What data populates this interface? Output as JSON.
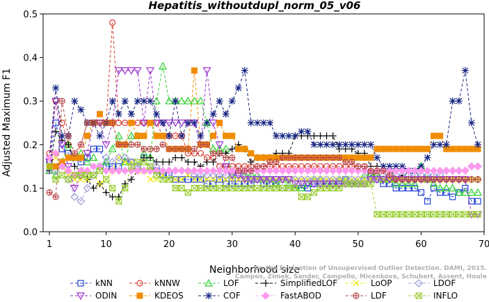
{
  "chart_data": {
    "type": "line",
    "title": "Hepatitis_withoutdupl_norm_05_v06",
    "xlabel": "Neighborhood size",
    "ylabel": "Adjusted Maximum F1",
    "xlim": [
      0,
      70
    ],
    "ylim": [
      0,
      0.5
    ],
    "xticks": [
      1,
      10,
      20,
      30,
      40,
      50,
      60,
      70
    ],
    "yticks": [
      0.0,
      0.1,
      0.2,
      0.3,
      0.4,
      0.5
    ],
    "ytick_labels": [
      "0.0",
      "0.1",
      "0.2",
      "0.3",
      "0.4",
      "0.5"
    ],
    "grid": false,
    "legend_position": "bottom",
    "watermark": [
      "Campos, Zimek, Sander, Campello, Micenkova, Schubert, Assent, Houle",
      "On the Evaluation of Unsupervised Outlier Detection. DAMI, 2015."
    ],
    "series": [
      {
        "name": "kNN",
        "color": "#1f3fd6",
        "marker": "square",
        "values": [
          0.16,
          0.25,
          0.19,
          0.18,
          0.17,
          0.16,
          0.17,
          0.19,
          0.19,
          0.15,
          0.15,
          0.15,
          0.16,
          0.16,
          0.15,
          0.17,
          0.15,
          0.14,
          0.13,
          0.13,
          0.12,
          0.12,
          0.12,
          0.12,
          0.12,
          0.11,
          0.11,
          0.12,
          0.11,
          0.11,
          0.11,
          0.11,
          0.11,
          0.12,
          0.11,
          0.11,
          0.11,
          0.1,
          0.1,
          0.1,
          0.1,
          0.1,
          0.11,
          0.11,
          0.11,
          0.11,
          0.11,
          0.12,
          0.11,
          0.11,
          0.11,
          0.13,
          0.12,
          0.11,
          0.11,
          0.1,
          0.1,
          0.1,
          0.1,
          0.09,
          0.07,
          0.1,
          0.09,
          0.09,
          0.08,
          0.09,
          0.1,
          0.07,
          0.07
        ]
      },
      {
        "name": "kNNW",
        "color": "#d63a2f",
        "marker": "circle",
        "values": [
          0.18,
          0.3,
          0.25,
          0.2,
          0.17,
          0.2,
          0.25,
          0.25,
          0.25,
          0.25,
          0.48,
          0.25,
          0.25,
          0.25,
          0.25,
          0.25,
          0.25,
          0.25,
          0.22,
          0.22,
          0.22,
          0.22,
          0.18,
          0.18,
          0.18,
          0.17,
          0.17,
          0.15,
          0.15,
          0.15,
          0.15,
          0.15,
          0.15,
          0.15,
          0.15,
          0.15,
          0.15,
          0.15,
          0.15,
          0.15,
          0.15,
          0.15,
          0.15,
          0.15,
          0.15,
          0.15,
          0.15,
          0.15,
          0.15,
          0.15,
          0.15,
          0.13,
          0.13,
          0.12,
          0.12,
          0.12,
          0.12,
          0.12,
          0.12,
          0.12,
          0.12,
          0.12,
          0.12,
          0.12,
          0.12,
          0.12,
          0.12,
          0.12,
          0.12
        ]
      },
      {
        "name": "LOF",
        "color": "#2fcf2f",
        "marker": "triangle-up",
        "values": [
          0.14,
          0.13,
          0.16,
          0.2,
          0.17,
          0.18,
          0.16,
          0.17,
          0.15,
          0.16,
          0.19,
          0.22,
          0.16,
          0.22,
          0.22,
          0.18,
          0.17,
          0.3,
          0.38,
          0.3,
          0.3,
          0.3,
          0.3,
          0.3,
          0.3,
          0.25,
          0.19,
          0.19,
          0.19,
          0.13,
          0.14,
          0.13,
          0.13,
          0.13,
          0.12,
          0.12,
          0.11,
          0.12,
          0.11,
          0.1,
          0.1,
          0.11,
          0.12,
          0.12,
          0.11,
          0.11,
          0.12,
          0.12,
          0.11,
          0.11,
          0.13,
          0.13,
          0.13,
          0.12,
          0.12,
          0.11,
          0.11,
          0.11,
          0.11,
          0.15,
          0.12,
          0.11,
          0.1,
          0.1,
          0.1,
          0.09,
          0.09,
          0.09,
          0.09
        ]
      },
      {
        "name": "SimplifiedLOF",
        "color": "#000000",
        "marker": "plus",
        "values": [
          0.14,
          0.23,
          0.21,
          0.2,
          0.15,
          0.14,
          0.12,
          0.1,
          0.11,
          0.09,
          0.08,
          0.08,
          0.11,
          0.12,
          0.14,
          0.17,
          0.17,
          0.16,
          0.16,
          0.16,
          0.17,
          0.17,
          0.16,
          0.16,
          0.15,
          0.16,
          0.16,
          0.18,
          0.18,
          0.19,
          0.2,
          0.19,
          0.16,
          0.17,
          0.17,
          0.17,
          0.18,
          0.18,
          0.18,
          0.22,
          0.22,
          0.22,
          0.22,
          0.22,
          0.22,
          0.22,
          0.19,
          0.19,
          0.19,
          0.18,
          0.18,
          0.15,
          0.15,
          0.15,
          0.15,
          0.12,
          0.13,
          0.12,
          0.12,
          0.12,
          0.12,
          0.12,
          0.12,
          0.12,
          0.12,
          0.12,
          0.12,
          0.12,
          0.12
        ]
      },
      {
        "name": "LoOP",
        "color": "#e8e800",
        "marker": "x",
        "values": [
          0.15,
          0.17,
          0.15,
          0.13,
          0.12,
          0.12,
          0.12,
          0.13,
          0.11,
          0.12,
          0.14,
          0.17,
          0.16,
          0.16,
          0.14,
          0.14,
          0.12,
          0.12,
          0.13,
          0.12,
          0.12,
          0.12,
          0.13,
          0.12,
          0.12,
          0.12,
          0.12,
          0.12,
          0.12,
          0.12,
          0.12,
          0.12,
          0.12,
          0.12,
          0.12,
          0.12,
          0.12,
          0.12,
          0.12,
          0.12,
          0.12,
          0.12,
          0.12,
          0.12,
          0.12,
          0.12,
          0.12,
          0.12,
          0.12,
          0.12,
          0.12,
          0.12,
          0.12,
          0.12,
          0.12,
          0.12,
          0.12,
          0.12,
          0.12,
          0.12,
          0.12,
          0.12,
          0.12,
          0.12,
          0.12,
          0.12,
          0.12,
          0.12,
          0.12
        ]
      },
      {
        "name": "LDOF",
        "color": "#9a9ad8",
        "marker": "diamond",
        "values": [
          0.14,
          0.14,
          0.15,
          0.12,
          0.08,
          0.07,
          0.1,
          0.13,
          0.15,
          0.17,
          0.16,
          0.17,
          0.17,
          0.16,
          0.15,
          0.14,
          0.14,
          0.15,
          0.14,
          0.14,
          0.14,
          0.14,
          0.14,
          0.13,
          0.13,
          0.13,
          0.13,
          0.13,
          0.13,
          0.12,
          0.13,
          0.13,
          0.12,
          0.12,
          0.12,
          0.12,
          0.12,
          0.12,
          0.12,
          0.12,
          0.12,
          0.12,
          0.12,
          0.12,
          0.12,
          0.12,
          0.12,
          0.12,
          0.12,
          0.12,
          0.12,
          0.12,
          0.12,
          0.13,
          0.13,
          0.13,
          0.13,
          0.13,
          0.13,
          0.13,
          0.13,
          0.13,
          0.13,
          0.14,
          0.14,
          0.14,
          0.14,
          0.15,
          0.15
        ]
      },
      {
        "name": "ODIN",
        "color": "#9a2fcf",
        "marker": "triangle-down",
        "values": [
          0.16,
          0.3,
          0.2,
          0.15,
          0.1,
          0.13,
          0.18,
          0.25,
          0.25,
          0.2,
          0.25,
          0.37,
          0.37,
          0.37,
          0.37,
          0.25,
          0.37,
          0.25,
          0.25,
          0.25,
          0.25,
          0.25,
          0.25,
          0.25,
          0.2,
          0.37,
          0.25,
          0.2,
          0.15,
          0.13,
          0.13,
          0.12,
          0.12,
          0.12,
          0.12,
          0.12,
          0.12,
          0.12,
          0.12,
          0.11,
          0.11,
          0.11,
          0.11,
          0.11,
          0.11,
          0.11,
          0.11,
          0.11,
          0.11,
          0.11,
          0.11,
          0.12,
          0.12,
          0.12,
          0.12,
          0.12,
          0.12,
          0.12,
          0.12,
          0.12,
          0.12,
          0.12,
          0.12,
          0.12,
          0.12,
          0.12,
          0.12,
          0.04,
          0.04
        ]
      },
      {
        "name": "KDEOS",
        "color": "#f08c00",
        "marker": "square-filled",
        "values": [
          0.15,
          0.15,
          0.16,
          0.17,
          0.17,
          0.17,
          0.22,
          0.25,
          0.27,
          0.25,
          0.25,
          0.2,
          0.2,
          0.25,
          0.22,
          0.22,
          0.25,
          0.22,
          0.22,
          0.19,
          0.19,
          0.19,
          0.19,
          0.37,
          0.2,
          0.2,
          0.22,
          0.25,
          0.22,
          0.22,
          0.19,
          0.19,
          0.18,
          0.17,
          0.17,
          0.17,
          0.17,
          0.17,
          0.17,
          0.17,
          0.17,
          0.17,
          0.17,
          0.17,
          0.17,
          0.17,
          0.17,
          0.17,
          0.17,
          0.17,
          0.17,
          0.17,
          0.19,
          0.19,
          0.19,
          0.19,
          0.19,
          0.19,
          0.19,
          0.19,
          0.19,
          0.22,
          0.22,
          0.19,
          0.19,
          0.19,
          0.19,
          0.19,
          0.19
        ]
      },
      {
        "name": "COF",
        "color": "#10207f",
        "marker": "asterisk",
        "values": [
          0.17,
          0.33,
          0.22,
          0.22,
          0.3,
          0.28,
          0.25,
          0.25,
          0.22,
          0.25,
          0.3,
          0.27,
          0.3,
          0.27,
          0.3,
          0.3,
          0.3,
          0.27,
          0.25,
          0.22,
          0.3,
          0.22,
          0.25,
          0.25,
          0.22,
          0.25,
          0.27,
          0.3,
          0.27,
          0.3,
          0.33,
          0.37,
          0.25,
          0.25,
          0.25,
          0.25,
          0.22,
          0.22,
          0.22,
          0.22,
          0.23,
          0.23,
          0.2,
          0.2,
          0.2,
          0.2,
          0.2,
          0.2,
          0.2,
          0.2,
          0.2,
          0.2,
          0.17,
          0.15,
          0.15,
          0.15,
          0.15,
          0.14,
          0.14,
          0.15,
          0.17,
          0.2,
          0.2,
          0.2,
          0.3,
          0.3,
          0.37,
          0.25,
          0.2
        ]
      },
      {
        "name": "FastABOD",
        "color": "#ff99ee",
        "marker": "diamond-filled",
        "values": [
          0.17,
          0.18,
          0.15,
          0.14,
          0.13,
          0.14,
          0.14,
          0.15,
          0.15,
          0.14,
          0.14,
          0.14,
          0.14,
          0.14,
          0.14,
          0.14,
          0.14,
          0.14,
          0.14,
          0.14,
          0.14,
          0.14,
          0.14,
          0.14,
          0.14,
          0.14,
          0.14,
          0.14,
          0.14,
          0.14,
          0.14,
          0.14,
          0.14,
          0.14,
          0.14,
          0.14,
          0.14,
          0.14,
          0.14,
          0.14,
          0.14,
          0.14,
          0.14,
          0.14,
          0.14,
          0.14,
          0.14,
          0.14,
          0.14,
          0.14,
          0.14,
          0.14,
          0.14,
          0.14,
          0.14,
          0.14,
          0.14,
          0.14,
          0.14,
          0.14,
          0.14,
          0.14,
          0.14,
          0.14,
          0.14,
          0.14,
          0.14,
          0.15,
          0.15
        ]
      },
      {
        "name": "LDF",
        "color": "#b84a4a",
        "marker": "circle-plus",
        "values": [
          0.09,
          0.08,
          0.3,
          0.22,
          0.18,
          0.2,
          0.25,
          0.25,
          0.25,
          0.25,
          0.25,
          0.2,
          0.2,
          0.2,
          0.2,
          0.19,
          0.19,
          0.19,
          0.2,
          0.19,
          0.19,
          0.19,
          0.19,
          0.19,
          0.2,
          0.2,
          0.18,
          0.18,
          0.17,
          0.17,
          0.14,
          0.14,
          0.14,
          0.15,
          0.15,
          0.16,
          0.16,
          0.17,
          0.17,
          0.17,
          0.17,
          0.17,
          0.17,
          0.17,
          0.17,
          0.17,
          0.17,
          0.16,
          0.16,
          0.15,
          0.15,
          0.14,
          0.14,
          0.14,
          0.13,
          0.12,
          0.12,
          0.12,
          0.12,
          0.12,
          0.12,
          0.12,
          0.12,
          0.12,
          0.12,
          0.12,
          0.12,
          0.12,
          0.12
        ]
      },
      {
        "name": "INFLO",
        "color": "#9acd32",
        "marker": "x-square",
        "values": [
          0.15,
          0.12,
          0.13,
          0.12,
          0.13,
          0.13,
          0.13,
          0.13,
          0.14,
          0.12,
          0.1,
          0.07,
          0.1,
          0.15,
          0.16,
          0.16,
          0.15,
          0.13,
          0.12,
          0.12,
          0.1,
          0.1,
          0.09,
          0.1,
          0.1,
          0.1,
          0.1,
          0.1,
          0.1,
          0.1,
          0.1,
          0.1,
          0.1,
          0.1,
          0.1,
          0.1,
          0.1,
          0.1,
          0.1,
          0.1,
          0.08,
          0.08,
          0.09,
          0.1,
          0.1,
          0.1,
          0.1,
          0.11,
          0.11,
          0.11,
          0.11,
          0.11,
          0.04,
          0.04,
          0.04,
          0.04,
          0.04,
          0.04,
          0.04,
          0.04,
          0.04,
          0.04,
          0.04,
          0.04,
          0.04,
          0.04,
          0.04,
          0.04,
          0.04
        ]
      }
    ]
  }
}
